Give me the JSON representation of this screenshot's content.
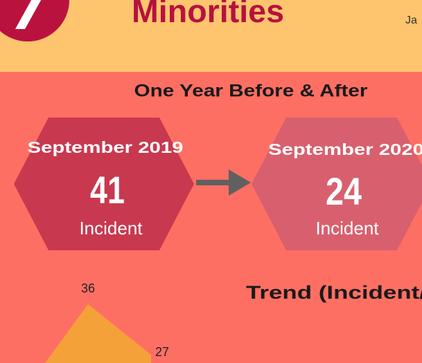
{
  "header": {
    "title": "Minorities",
    "date_fragment": "Ja"
  },
  "comparison": {
    "title": "One Year Before & After",
    "before": {
      "label": "September 2019",
      "value": 41,
      "unit": "Incident"
    },
    "after": {
      "label": "September 2020",
      "value": 24,
      "unit": "Incident"
    }
  },
  "trend": {
    "title": "Trend (Incident/",
    "values": [
      36,
      27
    ]
  }
}
